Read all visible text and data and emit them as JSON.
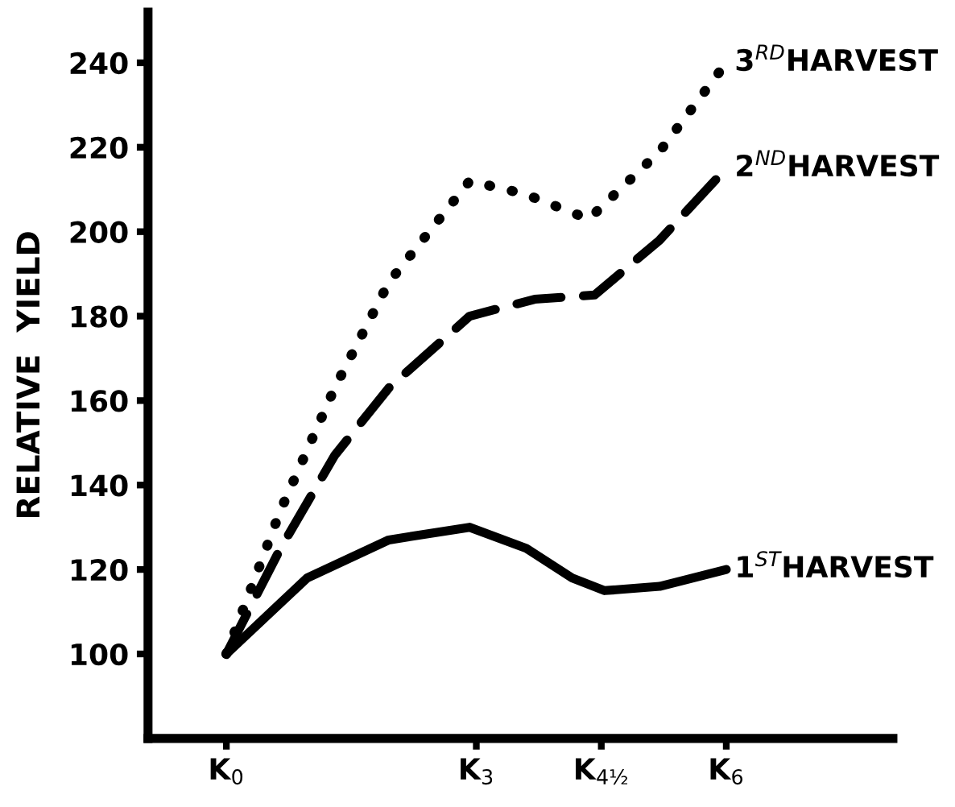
{
  "chart_data": {
    "type": "line",
    "ylabel": "RELATIVE  YIELD",
    "xlim": [
      -0.94,
      8.0
    ],
    "ylim": [
      80,
      252
    ],
    "xticks": [
      {
        "value": 0,
        "label": "K$_{0}$"
      },
      {
        "value": 3,
        "label": "K$_{3}$"
      },
      {
        "value": 4.5,
        "label": "K$_{4½}$"
      },
      {
        "value": 6,
        "label": "K$_{6}$"
      }
    ],
    "yticks": [
      100,
      120,
      140,
      160,
      180,
      200,
      220,
      240
    ],
    "grid": false,
    "marker": "none",
    "series": [
      {
        "name": "1$^{ST}$HARVEST",
        "color": "#000000",
        "line_style": "solid",
        "x": [
          0,
          0.97,
          1.95,
          2.92,
          3.6,
          4.15,
          4.54,
          5.2,
          6
        ],
        "values": [
          100,
          118,
          127,
          130,
          125,
          118,
          115,
          116,
          120
        ]
      },
      {
        "name": "2$^{ND}$HARVEST",
        "color": "#000000",
        "line_style": "dashed",
        "x": [
          0,
          0.65,
          1.3,
          1.95,
          2.92,
          3.7,
          4.42,
          5.2,
          6
        ],
        "values": [
          100,
          125,
          147,
          163,
          180,
          184,
          185,
          198,
          215
        ]
      },
      {
        "name": "3$^{RD}$HARVEST",
        "color": "#000000",
        "line_style": "dotted",
        "x": [
          0,
          0.65,
          1.3,
          1.95,
          2.92,
          3.57,
          4.35,
          5.2,
          6
        ],
        "values": [
          100,
          134,
          163,
          188,
          212,
          209,
          203,
          219,
          240
        ]
      }
    ]
  }
}
